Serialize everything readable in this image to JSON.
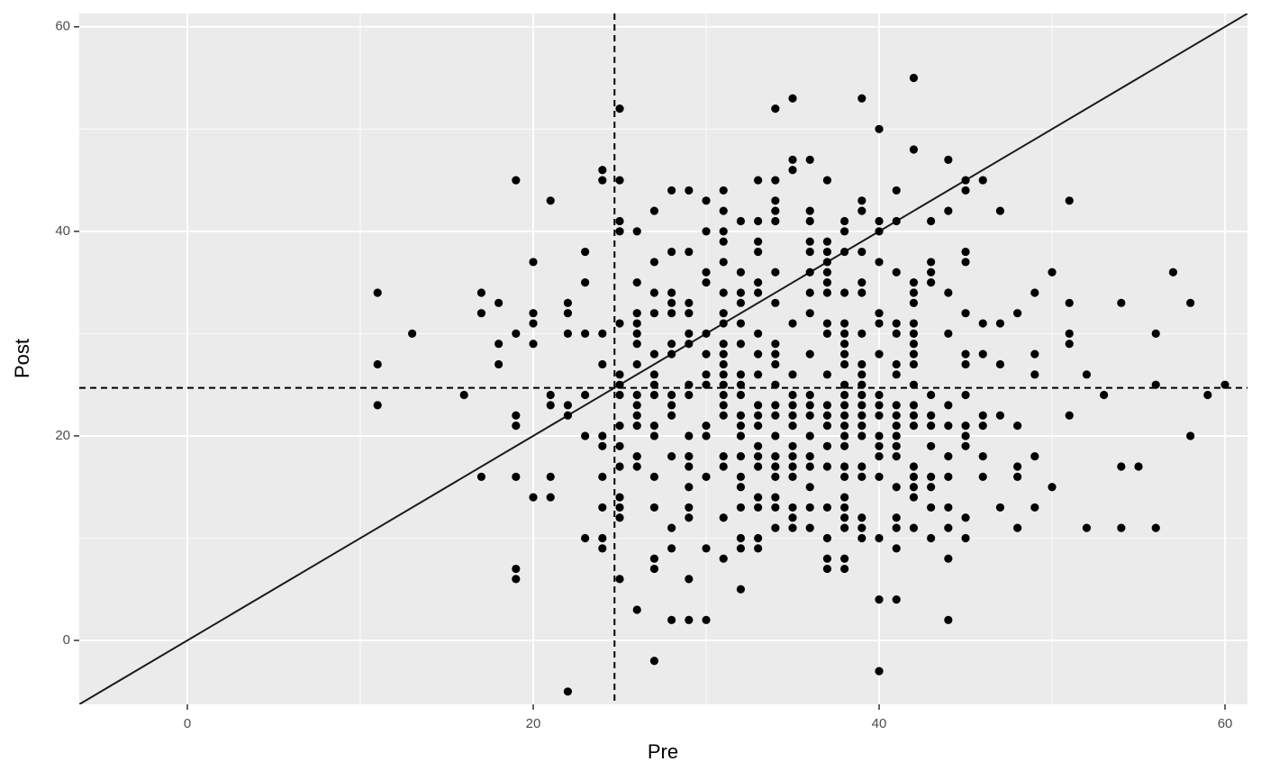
{
  "chart_data": {
    "type": "scatter",
    "x_label": "Pre",
    "y_label": "Post",
    "color": "#000000",
    "xlim": [
      -6.25,
      61.3
    ],
    "ylim": [
      -6.25,
      61.3
    ],
    "xticks": [
      0,
      20,
      40,
      60
    ],
    "yticks": [
      0,
      20,
      40,
      60
    ],
    "x_minor_ticks": [
      10,
      30,
      50
    ],
    "y_minor_ticks": [
      10,
      30,
      50
    ],
    "grid": true,
    "vline": 24.7,
    "hline": 24.7,
    "identity_line": true,
    "x": [
      11,
      11,
      11,
      13,
      16,
      17,
      17,
      17,
      18,
      18,
      18,
      19,
      19,
      19,
      19,
      19,
      19,
      19,
      20,
      20,
      20,
      20,
      20,
      21,
      21,
      21,
      21,
      21,
      22,
      22,
      22,
      22,
      22,
      22,
      23,
      23,
      23,
      23,
      23,
      23,
      24,
      24,
      24,
      24,
      24,
      24,
      24,
      24,
      24,
      24,
      25,
      25,
      25,
      25,
      25,
      25,
      25,
      25,
      25,
      25,
      25,
      25,
      25,
      25,
      25,
      26,
      26,
      26,
      26,
      26,
      26,
      26,
      26,
      26,
      26,
      26,
      26,
      26,
      26,
      27,
      27,
      27,
      27,
      27,
      27,
      27,
      27,
      27,
      27,
      27,
      27,
      27,
      27,
      27,
      28,
      28,
      28,
      28,
      28,
      28,
      28,
      28,
      28,
      28,
      28,
      28,
      28,
      28,
      29,
      29,
      29,
      29,
      29,
      29,
      29,
      29,
      29,
      29,
      29,
      29,
      29,
      29,
      29,
      29,
      30,
      30,
      30,
      30,
      30,
      30,
      30,
      30,
      30,
      30,
      30,
      30,
      30,
      31,
      31,
      31,
      31,
      31,
      31,
      31,
      31,
      31,
      31,
      31,
      31,
      31,
      31,
      31,
      31,
      31,
      31,
      31,
      31,
      32,
      32,
      32,
      32,
      32,
      32,
      32,
      32,
      32,
      32,
      32,
      32,
      32,
      32,
      32,
      32,
      32,
      32,
      32,
      33,
      33,
      33,
      33,
      33,
      33,
      33,
      33,
      33,
      33,
      33,
      33,
      33,
      33,
      33,
      33,
      33,
      33,
      33,
      34,
      34,
      34,
      34,
      34,
      34,
      34,
      34,
      34,
      34,
      34,
      34,
      34,
      34,
      34,
      34,
      34,
      34,
      34,
      34,
      35,
      35,
      35,
      35,
      35,
      35,
      35,
      35,
      35,
      35,
      35,
      35,
      35,
      35,
      35,
      35,
      36,
      36,
      36,
      36,
      36,
      36,
      36,
      36,
      36,
      36,
      36,
      36,
      36,
      36,
      36,
      36,
      36,
      36,
      37,
      37,
      37,
      37,
      37,
      37,
      37,
      37,
      37,
      37,
      37,
      37,
      37,
      37,
      37,
      37,
      37,
      37,
      37,
      38,
      38,
      38,
      38,
      38,
      38,
      38,
      38,
      38,
      38,
      38,
      38,
      38,
      38,
      38,
      38,
      38,
      38,
      38,
      38,
      38,
      38,
      38,
      38,
      39,
      39,
      39,
      39,
      39,
      39,
      39,
      39,
      39,
      39,
      39,
      39,
      39,
      39,
      39,
      39,
      39,
      39,
      39,
      39,
      40,
      40,
      40,
      40,
      40,
      40,
      40,
      40,
      40,
      40,
      40,
      40,
      40,
      40,
      40,
      40,
      40,
      41,
      41,
      41,
      41,
      41,
      41,
      41,
      41,
      41,
      41,
      41,
      41,
      41,
      41,
      41,
      41,
      41,
      41,
      42,
      42,
      42,
      42,
      42,
      42,
      42,
      42,
      42,
      42,
      42,
      42,
      42,
      42,
      42,
      42,
      42,
      42,
      42,
      43,
      43,
      43,
      43,
      43,
      43,
      43,
      43,
      43,
      43,
      43,
      43,
      44,
      44,
      44,
      44,
      44,
      44,
      44,
      44,
      44,
      44,
      44,
      44,
      45,
      45,
      45,
      45,
      45,
      45,
      45,
      45,
      45,
      45,
      45,
      45,
      45,
      46,
      46,
      46,
      46,
      46,
      46,
      46,
      47,
      47,
      47,
      47,
      47,
      48,
      48,
      48,
      48,
      48,
      49,
      49,
      49,
      49,
      49,
      50,
      50,
      51,
      51,
      51,
      51,
      51,
      52,
      52,
      53,
      54,
      54,
      54,
      55,
      56,
      56,
      56,
      57,
      58,
      58,
      59,
      60
    ],
    "values": [
      34,
      27,
      23,
      30,
      24,
      34,
      32,
      16,
      33,
      29,
      27,
      45,
      30,
      22,
      21,
      16,
      7,
      6,
      37,
      32,
      31,
      29,
      14,
      43,
      24,
      23,
      16,
      14,
      33,
      32,
      30,
      23,
      22,
      -5,
      38,
      35,
      30,
      24,
      20,
      10,
      46,
      45,
      30,
      27,
      20,
      19,
      16,
      13,
      10,
      9,
      52,
      45,
      41,
      40,
      31,
      26,
      25,
      24,
      21,
      19,
      17,
      14,
      13,
      12,
      6,
      40,
      35,
      32,
      31,
      30,
      29,
      27,
      24,
      23,
      22,
      21,
      18,
      17,
      3,
      42,
      37,
      34,
      32,
      28,
      26,
      25,
      24,
      21,
      20,
      16,
      13,
      8,
      7,
      -2,
      44,
      38,
      34,
      33,
      32,
      29,
      28,
      24,
      23,
      22,
      18,
      11,
      9,
      2,
      44,
      38,
      33,
      32,
      30,
      29,
      25,
      24,
      20,
      18,
      17,
      15,
      13,
      12,
      6,
      2,
      43,
      40,
      36,
      35,
      30,
      28,
      26,
      25,
      21,
      20,
      16,
      9,
      2,
      44,
      42,
      40,
      39,
      37,
      34,
      32,
      31,
      29,
      28,
      27,
      26,
      25,
      24,
      23,
      22,
      18,
      17,
      12,
      8,
      41,
      36,
      34,
      33,
      31,
      29,
      26,
      25,
      24,
      22,
      21,
      20,
      18,
      16,
      15,
      13,
      10,
      9,
      5,
      45,
      41,
      39,
      38,
      35,
      34,
      30,
      28,
      26,
      23,
      22,
      21,
      19,
      18,
      17,
      14,
      13,
      10,
      9,
      52,
      45,
      43,
      42,
      41,
      36,
      33,
      29,
      28,
      27,
      25,
      23,
      22,
      20,
      18,
      17,
      16,
      14,
      13,
      11,
      53,
      47,
      46,
      31,
      26,
      24,
      23,
      22,
      21,
      19,
      18,
      17,
      16,
      13,
      12,
      11,
      47,
      42,
      41,
      39,
      38,
      36,
      34,
      32,
      28,
      24,
      23,
      22,
      20,
      18,
      17,
      15,
      13,
      11,
      45,
      39,
      38,
      37,
      36,
      35,
      34,
      31,
      30,
      26,
      23,
      22,
      21,
      19,
      17,
      13,
      10,
      8,
      7,
      41,
      40,
      38,
      34,
      31,
      30,
      29,
      28,
      27,
      25,
      24,
      23,
      22,
      21,
      20,
      19,
      17,
      16,
      14,
      13,
      12,
      11,
      8,
      7,
      53,
      43,
      42,
      38,
      35,
      34,
      30,
      27,
      26,
      25,
      24,
      23,
      22,
      21,
      20,
      17,
      16,
      12,
      11,
      10,
      50,
      41,
      40,
      37,
      32,
      31,
      28,
      24,
      23,
      22,
      20,
      19,
      18,
      16,
      10,
      4,
      -3,
      44,
      41,
      36,
      31,
      30,
      27,
      26,
      23,
      22,
      21,
      20,
      19,
      18,
      15,
      12,
      11,
      9,
      4,
      55,
      48,
      35,
      34,
      33,
      31,
      30,
      29,
      28,
      27,
      25,
      23,
      22,
      21,
      17,
      16,
      15,
      14,
      11,
      41,
      37,
      36,
      35,
      24,
      22,
      21,
      19,
      16,
      15,
      13,
      10,
      47,
      42,
      34,
      30,
      23,
      21,
      18,
      16,
      13,
      11,
      8,
      2,
      45,
      44,
      38,
      37,
      32,
      28,
      27,
      24,
      21,
      20,
      19,
      12,
      10,
      45,
      31,
      28,
      22,
      21,
      18,
      16,
      42,
      31,
      27,
      22,
      13,
      32,
      21,
      17,
      16,
      11,
      34,
      28,
      26,
      18,
      13,
      36,
      15,
      43,
      33,
      30,
      29,
      22,
      26,
      11,
      24,
      33,
      17,
      11,
      17,
      30,
      25,
      11,
      36,
      33,
      20,
      24,
      25
    ]
  }
}
